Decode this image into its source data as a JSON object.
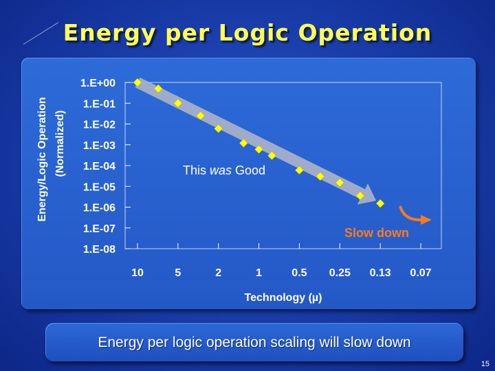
{
  "slide": {
    "title": "Energy per Logic Operation",
    "caption": "Energy per logic operation scaling will slow down",
    "page_number": "15"
  },
  "colors": {
    "title": "#ffff55",
    "marker": "#ffff00",
    "trend_arrow": "#a9b1c9",
    "slow_down": "#ff7a1a"
  },
  "chart_data": {
    "type": "scatter",
    "ylabel_line1": "Energy/Logic Operation",
    "ylabel_line2": "(Normalized)",
    "xlabel": "Technology (µ)",
    "y_scale": "log",
    "ylim": [
      1e-08,
      1
    ],
    "y_ticks": [
      "1.E+00",
      "1.E-01",
      "1.E-02",
      "1.E-03",
      "1.E-04",
      "1.E-05",
      "1.E-06",
      "1.E-07",
      "1.E-08"
    ],
    "x_ticks": [
      "10",
      "5",
      "2",
      "1",
      "0.5",
      "0.25",
      "0.13",
      "0.07"
    ],
    "grid": false,
    "points": [
      {
        "x": 10,
        "y": 1.0
      },
      {
        "x": 7,
        "y": 0.5
      },
      {
        "x": 5,
        "y": 0.1
      },
      {
        "x": 3,
        "y": 0.025
      },
      {
        "x": 2,
        "y": 0.006
      },
      {
        "x": 1.3,
        "y": 0.0012
      },
      {
        "x": 1,
        "y": 0.0006
      },
      {
        "x": 0.8,
        "y": 0.0003
      },
      {
        "x": 0.5,
        "y": 6e-05
      },
      {
        "x": 0.35,
        "y": 3e-05
      },
      {
        "x": 0.25,
        "y": 1.5e-05
      },
      {
        "x": 0.18,
        "y": 3.5e-06
      },
      {
        "x": 0.13,
        "y": 1.5e-06
      }
    ],
    "annotations": {
      "good_prefix": "This",
      "good_emph": "was",
      "good_suffix": "Good",
      "slow_down": "Slow down"
    }
  }
}
